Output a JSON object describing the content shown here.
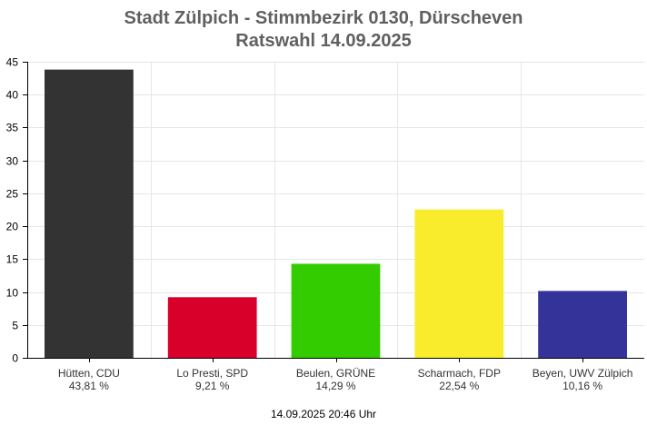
{
  "header": {
    "title_line1": "Stadt Zülpich - Stimmbezirk 0130, Dürscheven",
    "title_line2": "Ratswahl 14.09.2025"
  },
  "footer": {
    "timestamp": "14.09.2025 20:46 Uhr"
  },
  "chart_data": {
    "type": "bar",
    "title": "Stadt Zülpich - Stimmbezirk 0130, Dürscheven",
    "subtitle": "Ratswahl 14.09.2025",
    "categories": [
      "Hütten, CDU",
      "Lo Presti, SPD",
      "Beulen, GRÜNE",
      "Scharmach, FDP",
      "Beyen, UWV Zülpich"
    ],
    "value_labels": [
      "43,81 %",
      "9,21 %",
      "14,29 %",
      "22,54 %",
      "10,16 %"
    ],
    "values": [
      43.81,
      9.21,
      14.29,
      22.54,
      10.16
    ],
    "colors": [
      "#333333",
      "#d8002a",
      "#33cc00",
      "#f9ec2c",
      "#333399"
    ],
    "ylim": [
      0,
      45
    ],
    "yticks": [
      0,
      5,
      10,
      15,
      20,
      25,
      30,
      35,
      40,
      45
    ],
    "grid": true,
    "legend": "none"
  }
}
